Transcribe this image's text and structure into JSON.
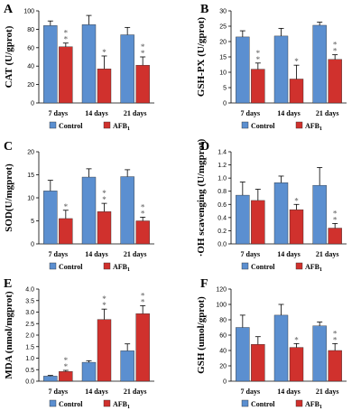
{
  "chart_data": [
    {
      "panel": "A",
      "type": "bar",
      "ylabel": "CAT (U/gprot)",
      "ylim": [
        0,
        100
      ],
      "yticks": [
        0,
        20,
        40,
        60,
        80,
        100
      ],
      "categories": [
        "7 days",
        "14 days",
        "21 days"
      ],
      "series": [
        {
          "name": "Control",
          "values": [
            84,
            85,
            74
          ],
          "errors": [
            5,
            10,
            8
          ]
        },
        {
          "name": "AFB",
          "values": [
            61,
            37,
            41
          ],
          "errors": [
            4,
            14,
            9
          ]
        }
      ],
      "significance": [
        "**",
        "*",
        "**"
      ]
    },
    {
      "panel": "B",
      "type": "bar",
      "ylabel": "GSH-PX (U/gprot)",
      "ylim": [
        0,
        30
      ],
      "yticks": [
        0,
        5,
        10,
        15,
        20,
        25,
        30
      ],
      "categories": [
        "7 days",
        "14 days",
        "21 days"
      ],
      "series": [
        {
          "name": "Control",
          "values": [
            21.5,
            21.8,
            25.3
          ],
          "errors": [
            2,
            2.5,
            1
          ]
        },
        {
          "name": "AFB",
          "values": [
            11,
            7.8,
            14.2
          ],
          "errors": [
            2,
            4.5,
            1.5
          ]
        }
      ],
      "significance": [
        "**",
        "*",
        "**"
      ]
    },
    {
      "panel": "C",
      "type": "bar",
      "ylabel": "SOD(U/mgprot)",
      "ylim": [
        0,
        20
      ],
      "yticks": [
        0,
        5,
        10,
        15,
        20
      ],
      "categories": [
        "7 days",
        "14 days",
        "21 days"
      ],
      "series": [
        {
          "name": "Control",
          "values": [
            11.5,
            14.5,
            14.6
          ],
          "errors": [
            2.3,
            1.8,
            1.5
          ]
        },
        {
          "name": "AFB",
          "values": [
            5.5,
            7,
            5
          ],
          "errors": [
            1.8,
            1.8,
            0.8
          ]
        }
      ],
      "significance": [
        "*",
        "**",
        "**"
      ]
    },
    {
      "panel": "D",
      "type": "bar",
      "ylabel": "·OH scavenging (U/mgprot)",
      "ylim": [
        0,
        1.4
      ],
      "yticks": [
        0,
        0.2,
        0.4,
        0.6,
        0.8,
        1.0,
        1.2,
        1.4
      ],
      "categories": [
        "7 days",
        "14 days",
        "21 days"
      ],
      "series": [
        {
          "name": "Control",
          "values": [
            0.74,
            0.93,
            0.89
          ],
          "errors": [
            0.2,
            0.1,
            0.27
          ]
        },
        {
          "name": "AFB",
          "values": [
            0.66,
            0.52,
            0.24
          ],
          "errors": [
            0.17,
            0.08,
            0.07
          ]
        }
      ],
      "significance": [
        "",
        "*",
        "**"
      ]
    },
    {
      "panel": "E",
      "type": "bar",
      "ylabel": "MDA (nmol/mgprot)",
      "ylim": [
        0,
        4.0
      ],
      "yticks": [
        0,
        0.5,
        1.0,
        1.5,
        2.0,
        2.5,
        3.0,
        3.5,
        4.0
      ],
      "categories": [
        "7 days",
        "14 days",
        "21 days"
      ],
      "series": [
        {
          "name": "Control",
          "values": [
            0.22,
            0.82,
            1.32
          ],
          "errors": [
            0.03,
            0.07,
            0.3
          ]
        },
        {
          "name": "AFB",
          "values": [
            0.42,
            2.68,
            2.93
          ],
          "errors": [
            0.05,
            0.45,
            0.35
          ]
        }
      ],
      "significance": [
        "**",
        "**",
        "**"
      ]
    },
    {
      "panel": "F",
      "type": "bar",
      "ylabel": "GSH (umol/gprot)",
      "ylim": [
        0,
        120
      ],
      "yticks": [
        0,
        20,
        40,
        60,
        80,
        100,
        120
      ],
      "categories": [
        "7 days",
        "14 days",
        "21 days"
      ],
      "series": [
        {
          "name": "Control",
          "values": [
            70,
            86,
            72
          ],
          "errors": [
            16,
            14,
            5
          ]
        },
        {
          "name": "AFB",
          "values": [
            48,
            44,
            40
          ],
          "errors": [
            10,
            5,
            9
          ]
        }
      ],
      "significance": [
        "",
        "*",
        "**"
      ]
    }
  ],
  "legend": {
    "control": "Control",
    "afb_prefix": "AFB",
    "afb_subscript": "1"
  },
  "colors": {
    "control": "#5b8fd0",
    "afb": "#d0312d"
  }
}
